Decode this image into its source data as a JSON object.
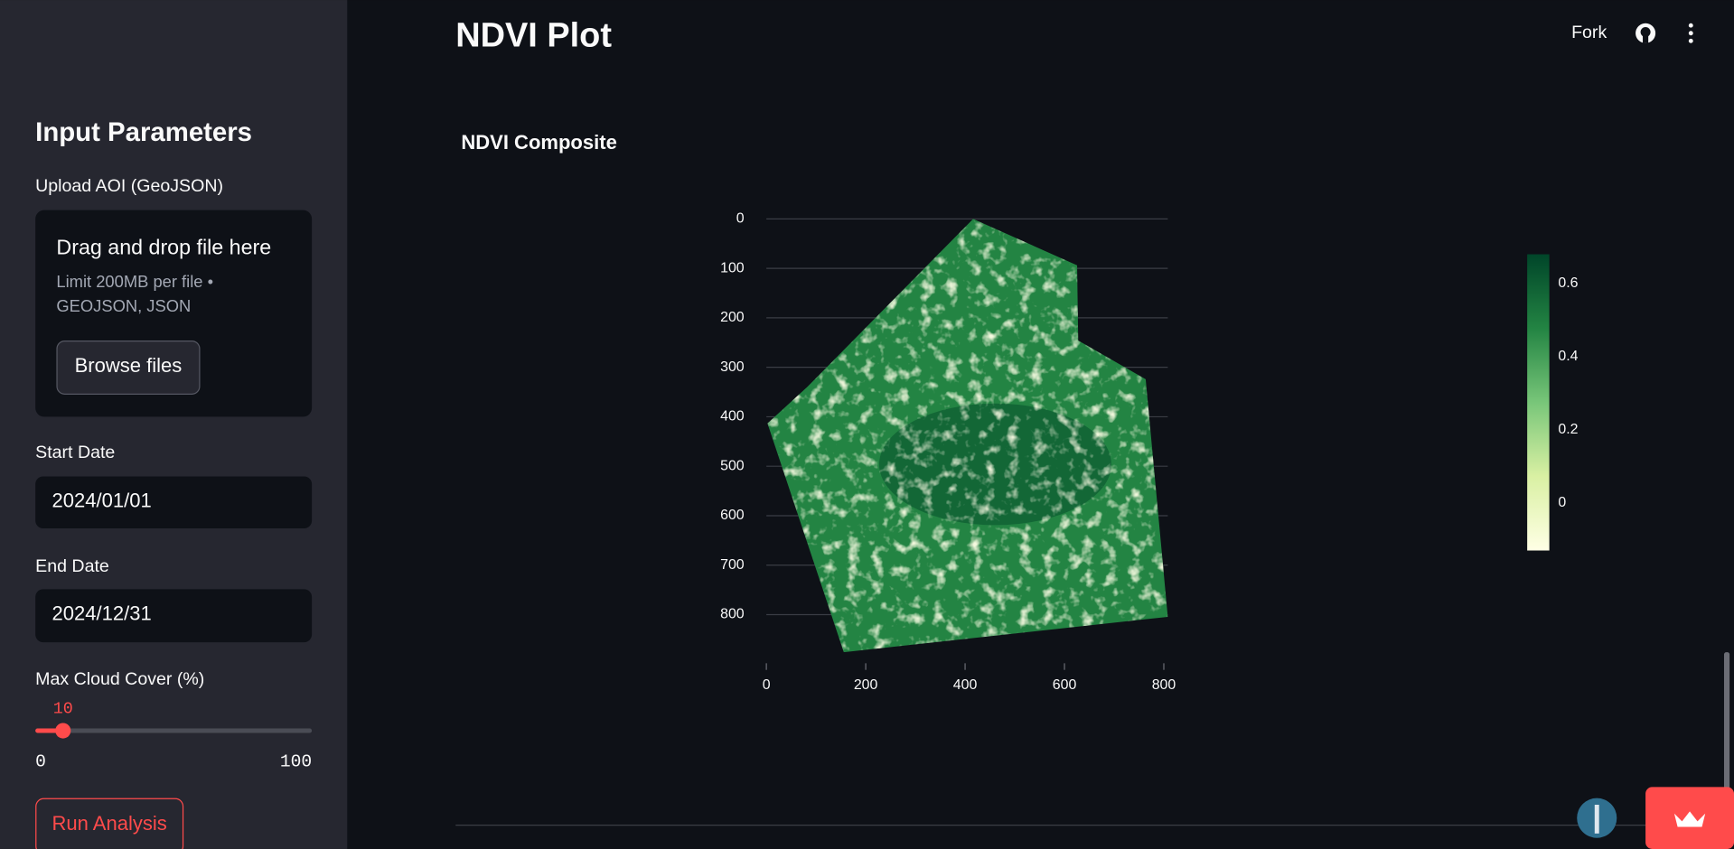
{
  "sidebar": {
    "title": "Input Parameters",
    "upload": {
      "label": "Upload AOI (GeoJSON)",
      "drop_text": "Drag and drop file here",
      "limit_lines": [
        "Limit 200MB per file •",
        "GEOJSON, JSON"
      ],
      "button": "Browse files"
    },
    "start_date": {
      "label": "Start Date",
      "value": "2024/01/01"
    },
    "end_date": {
      "label": "End Date",
      "value": "2024/12/31"
    },
    "slider": {
      "label": "Max Cloud Cover (%)",
      "value": 10,
      "min": 0,
      "max": 100
    },
    "run_button": "Run Analysis"
  },
  "header": {
    "title": "NDVI Plot",
    "fork": "Fork"
  },
  "chart_data": {
    "type": "heatmap",
    "title": "NDVI Composite",
    "xlim": [
      0,
      808
    ],
    "xticks": [
      0,
      200,
      400,
      600,
      800
    ],
    "ylim": [
      876,
      0
    ],
    "yticks": [
      0,
      100,
      200,
      300,
      400,
      500,
      600,
      700,
      800
    ],
    "grid": true,
    "colorscale": [
      "#ffffe5",
      "#d9f0a3",
      "#78c679",
      "#238443",
      "#004529"
    ],
    "colorbar_lim": [
      -0.13,
      0.68
    ],
    "colorbar_ticks": [
      0,
      0.2,
      0.4,
      0.6
    ]
  }
}
